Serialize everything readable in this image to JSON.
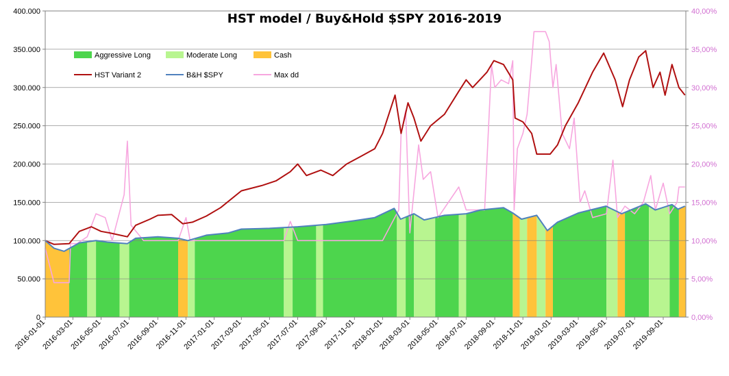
{
  "chart_data": {
    "type": "area",
    "title": "HST model / Buy&Hold $SPY   2016-2019",
    "x_ticks": [
      "2016-01-01",
      "2016-03-01",
      "2016-05-01",
      "2016-07-01",
      "2016-09-01",
      "2016-11-01",
      "2017-01-01",
      "2017-03-01",
      "2017-05-01",
      "2017-07-01",
      "2017-09-01",
      "2017-11-01",
      "2018-01-01",
      "2018-03-01",
      "2018-05-01",
      "2018-07-01",
      "2018-09-01",
      "2018-11-01",
      "2019-01-01",
      "2019-03-01",
      "2019-05-01",
      "2019-07-01",
      "2019-09-01"
    ],
    "x_range": [
      "2016-01-01",
      "2019-10-20"
    ],
    "y_left": {
      "range": [
        0,
        400000
      ],
      "ticks": [
        "0",
        "50.000",
        "100.000",
        "150.000",
        "200.000",
        "250.000",
        "300.000",
        "350.000",
        "400.000"
      ]
    },
    "y_right": {
      "range": [
        0,
        40
      ],
      "ticks": [
        "0,00%",
        "5,00%",
        "10,00%",
        "15,00%",
        "20,00%",
        "25,00%",
        "30,00%",
        "35,00%",
        "40,00%"
      ]
    },
    "grid": true,
    "legend_position": "top-left",
    "legend": [
      {
        "name": "Aggressive Long",
        "kind": "area",
        "color": "#4dd54d"
      },
      {
        "name": "Moderate Long",
        "kind": "area",
        "color": "#b8f590"
      },
      {
        "name": "Cash",
        "kind": "area",
        "color": "#ffc33a"
      },
      {
        "name": "HST Variant 2",
        "kind": "line",
        "color": "#b01010"
      },
      {
        "name": "B&H $SPY",
        "kind": "line",
        "color": "#4f81bd"
      },
      {
        "name": "Max dd",
        "kind": "line",
        "color": "#f7a6df"
      }
    ],
    "regimes": [
      {
        "start": "2016-01-01",
        "end": "2016-02-22",
        "state": "Cash"
      },
      {
        "start": "2016-02-22",
        "end": "2016-04-01",
        "state": "Aggressive Long"
      },
      {
        "start": "2016-04-01",
        "end": "2016-04-20",
        "state": "Moderate Long"
      },
      {
        "start": "2016-04-20",
        "end": "2016-06-10",
        "state": "Aggressive Long"
      },
      {
        "start": "2016-06-10",
        "end": "2016-07-01",
        "state": "Moderate Long"
      },
      {
        "start": "2016-07-01",
        "end": "2016-10-15",
        "state": "Aggressive Long"
      },
      {
        "start": "2016-10-15",
        "end": "2016-11-05",
        "state": "Cash"
      },
      {
        "start": "2016-11-05",
        "end": "2016-11-20",
        "state": "Moderate Long"
      },
      {
        "start": "2016-11-20",
        "end": "2017-06-01",
        "state": "Aggressive Long"
      },
      {
        "start": "2017-06-01",
        "end": "2017-06-20",
        "state": "Moderate Long"
      },
      {
        "start": "2017-06-20",
        "end": "2017-08-10",
        "state": "Aggressive Long"
      },
      {
        "start": "2017-08-10",
        "end": "2017-08-25",
        "state": "Moderate Long"
      },
      {
        "start": "2017-08-25",
        "end": "2018-02-01",
        "state": "Aggressive Long"
      },
      {
        "start": "2018-02-01",
        "end": "2018-02-20",
        "state": "Moderate Long"
      },
      {
        "start": "2018-02-20",
        "end": "2018-03-10",
        "state": "Aggressive Long"
      },
      {
        "start": "2018-03-10",
        "end": "2018-04-25",
        "state": "Moderate Long"
      },
      {
        "start": "2018-04-25",
        "end": "2018-06-15",
        "state": "Aggressive Long"
      },
      {
        "start": "2018-06-15",
        "end": "2018-07-01",
        "state": "Moderate Long"
      },
      {
        "start": "2018-07-01",
        "end": "2018-10-10",
        "state": "Aggressive Long"
      },
      {
        "start": "2018-10-10",
        "end": "2018-10-25",
        "state": "Cash"
      },
      {
        "start": "2018-10-25",
        "end": "2018-11-10",
        "state": "Moderate Long"
      },
      {
        "start": "2018-11-10",
        "end": "2018-12-01",
        "state": "Cash"
      },
      {
        "start": "2018-12-01",
        "end": "2018-12-20",
        "state": "Moderate Long"
      },
      {
        "start": "2018-12-20",
        "end": "2019-01-05",
        "state": "Cash"
      },
      {
        "start": "2019-01-05",
        "end": "2019-05-01",
        "state": "Aggressive Long"
      },
      {
        "start": "2019-05-01",
        "end": "2019-05-25",
        "state": "Moderate Long"
      },
      {
        "start": "2019-05-25",
        "end": "2019-06-10",
        "state": "Cash"
      },
      {
        "start": "2019-06-10",
        "end": "2019-08-01",
        "state": "Aggressive Long"
      },
      {
        "start": "2019-08-01",
        "end": "2019-09-15",
        "state": "Moderate Long"
      },
      {
        "start": "2019-09-15",
        "end": "2019-10-05",
        "state": "Aggressive Long"
      },
      {
        "start": "2019-10-05",
        "end": "2019-10-20",
        "state": "Cash"
      }
    ],
    "series": [
      {
        "name": "HST Variant 2",
        "axis": "left",
        "points": [
          [
            "2016-01-01",
            100000
          ],
          [
            "2016-01-20",
            95000
          ],
          [
            "2016-02-22",
            96000
          ],
          [
            "2016-03-15",
            112000
          ],
          [
            "2016-04-10",
            118000
          ],
          [
            "2016-05-01",
            112000
          ],
          [
            "2016-05-20",
            110000
          ],
          [
            "2016-06-27",
            105000
          ],
          [
            "2016-07-15",
            120000
          ],
          [
            "2016-08-15",
            128000
          ],
          [
            "2016-09-01",
            133000
          ],
          [
            "2016-10-01",
            134000
          ],
          [
            "2016-10-25",
            122000
          ],
          [
            "2016-11-15",
            124000
          ],
          [
            "2016-12-15",
            132000
          ],
          [
            "2017-01-15",
            143000
          ],
          [
            "2017-03-01",
            165000
          ],
          [
            "2017-04-15",
            172000
          ],
          [
            "2017-05-15",
            178000
          ],
          [
            "2017-06-15",
            190000
          ],
          [
            "2017-07-01",
            200000
          ],
          [
            "2017-07-20",
            185000
          ],
          [
            "2017-08-20",
            192000
          ],
          [
            "2017-09-15",
            185000
          ],
          [
            "2017-10-15",
            200000
          ],
          [
            "2017-11-15",
            210000
          ],
          [
            "2017-12-15",
            220000
          ],
          [
            "2018-01-01",
            240000
          ],
          [
            "2018-01-28",
            290000
          ],
          [
            "2018-02-10",
            240000
          ],
          [
            "2018-02-25",
            280000
          ],
          [
            "2018-03-10",
            260000
          ],
          [
            "2018-03-25",
            230000
          ],
          [
            "2018-04-15",
            250000
          ],
          [
            "2018-05-15",
            265000
          ],
          [
            "2018-06-15",
            295000
          ],
          [
            "2018-07-01",
            310000
          ],
          [
            "2018-07-15",
            300000
          ],
          [
            "2018-08-15",
            320000
          ],
          [
            "2018-08-30",
            335000
          ],
          [
            "2018-09-20",
            330000
          ],
          [
            "2018-10-10",
            310000
          ],
          [
            "2018-10-15",
            260000
          ],
          [
            "2018-11-01",
            255000
          ],
          [
            "2018-11-20",
            240000
          ],
          [
            "2018-12-01",
            213000
          ],
          [
            "2018-12-30",
            213000
          ],
          [
            "2019-01-15",
            225000
          ],
          [
            "2019-02-01",
            250000
          ],
          [
            "2019-03-01",
            280000
          ],
          [
            "2019-04-01",
            320000
          ],
          [
            "2019-04-25",
            345000
          ],
          [
            "2019-05-20",
            310000
          ],
          [
            "2019-06-05",
            275000
          ],
          [
            "2019-06-20",
            310000
          ],
          [
            "2019-07-10",
            340000
          ],
          [
            "2019-07-25",
            348000
          ],
          [
            "2019-08-10",
            300000
          ],
          [
            "2019-08-25",
            320000
          ],
          [
            "2019-09-05",
            290000
          ],
          [
            "2019-09-20",
            330000
          ],
          [
            "2019-10-05",
            300000
          ],
          [
            "2019-10-18",
            290000
          ]
        ]
      },
      {
        "name": "B&H $SPY",
        "axis": "left",
        "points": [
          [
            "2016-01-01",
            100000
          ],
          [
            "2016-01-20",
            90000
          ],
          [
            "2016-02-11",
            86000
          ],
          [
            "2016-03-15",
            97000
          ],
          [
            "2016-04-20",
            100000
          ],
          [
            "2016-05-15",
            98000
          ],
          [
            "2016-06-27",
            96000
          ],
          [
            "2016-07-15",
            103000
          ],
          [
            "2016-09-01",
            105000
          ],
          [
            "2016-10-15",
            103000
          ],
          [
            "2016-11-05",
            100000
          ],
          [
            "2016-12-15",
            107000
          ],
          [
            "2017-02-01",
            110000
          ],
          [
            "2017-03-01",
            115000
          ],
          [
            "2017-05-01",
            116000
          ],
          [
            "2017-07-01",
            118000
          ],
          [
            "2017-09-01",
            121000
          ],
          [
            "2017-11-01",
            126000
          ],
          [
            "2017-12-15",
            130000
          ],
          [
            "2018-01-26",
            142000
          ],
          [
            "2018-02-09",
            128000
          ],
          [
            "2018-03-10",
            135000
          ],
          [
            "2018-04-01",
            127000
          ],
          [
            "2018-05-15",
            133000
          ],
          [
            "2018-07-01",
            135000
          ],
          [
            "2018-08-01",
            140000
          ],
          [
            "2018-09-20",
            143000
          ],
          [
            "2018-10-10",
            136000
          ],
          [
            "2018-10-29",
            128000
          ],
          [
            "2018-12-01",
            133000
          ],
          [
            "2018-12-24",
            113000
          ],
          [
            "2019-01-15",
            124000
          ],
          [
            "2019-03-01",
            136000
          ],
          [
            "2019-04-30",
            145000
          ],
          [
            "2019-06-03",
            135000
          ],
          [
            "2019-07-25",
            148000
          ],
          [
            "2019-08-15",
            140000
          ],
          [
            "2019-09-20",
            147000
          ],
          [
            "2019-10-03",
            141000
          ],
          [
            "2019-10-18",
            145000
          ]
        ]
      },
      {
        "name": "Max dd",
        "axis": "right",
        "points": [
          [
            "2016-01-01",
            9.0
          ],
          [
            "2016-01-20",
            4.5
          ],
          [
            "2016-02-22",
            4.5
          ],
          [
            "2016-02-25",
            9.6
          ],
          [
            "2016-03-10",
            9.6
          ],
          [
            "2016-04-01",
            10.5
          ],
          [
            "2016-04-20",
            13.5
          ],
          [
            "2016-05-10",
            13.0
          ],
          [
            "2016-05-25",
            10.0
          ],
          [
            "2016-06-20",
            16.0
          ],
          [
            "2016-06-27",
            23.0
          ],
          [
            "2016-07-05",
            12.0
          ],
          [
            "2016-08-01",
            10.0
          ],
          [
            "2016-10-15",
            10.0
          ],
          [
            "2016-11-01",
            13.0
          ],
          [
            "2016-11-10",
            10.0
          ],
          [
            "2017-06-01",
            10.0
          ],
          [
            "2017-06-15",
            12.5
          ],
          [
            "2017-07-01",
            10.0
          ],
          [
            "2018-01-01",
            10.0
          ],
          [
            "2018-02-05",
            14.0
          ],
          [
            "2018-02-10",
            24.0
          ],
          [
            "2018-02-20",
            27.0
          ],
          [
            "2018-03-01",
            11.0
          ],
          [
            "2018-03-20",
            22.5
          ],
          [
            "2018-03-30",
            18.0
          ],
          [
            "2018-04-15",
            19.0
          ],
          [
            "2018-05-01",
            13.0
          ],
          [
            "2018-06-15",
            17.0
          ],
          [
            "2018-07-01",
            14.0
          ],
          [
            "2018-08-10",
            14.0
          ],
          [
            "2018-08-25",
            33.0
          ],
          [
            "2018-09-01",
            30.0
          ],
          [
            "2018-09-15",
            31.0
          ],
          [
            "2018-10-01",
            30.5
          ],
          [
            "2018-10-10",
            33.5
          ],
          [
            "2018-10-13",
            14.0
          ],
          [
            "2018-10-20",
            22.0
          ],
          [
            "2018-11-01",
            24.0
          ],
          [
            "2018-11-10",
            26.5
          ],
          [
            "2018-11-20",
            33.5
          ],
          [
            "2018-11-25",
            37.3
          ],
          [
            "2018-12-20",
            37.3
          ],
          [
            "2018-12-28",
            36.0
          ],
          [
            "2019-01-05",
            30.0
          ],
          [
            "2019-01-12",
            33.0
          ],
          [
            "2019-01-25",
            24.0
          ],
          [
            "2019-02-10",
            22.0
          ],
          [
            "2019-02-20",
            26.0
          ],
          [
            "2019-03-05",
            15.0
          ],
          [
            "2019-03-15",
            16.5
          ],
          [
            "2019-04-01",
            13.0
          ],
          [
            "2019-05-01",
            13.5
          ],
          [
            "2019-05-15",
            20.5
          ],
          [
            "2019-05-25",
            13.0
          ],
          [
            "2019-06-10",
            14.5
          ],
          [
            "2019-07-01",
            13.5
          ],
          [
            "2019-07-20",
            15.0
          ],
          [
            "2019-08-05",
            18.5
          ],
          [
            "2019-08-15",
            14.0
          ],
          [
            "2019-09-01",
            17.5
          ],
          [
            "2019-09-15",
            13.5
          ],
          [
            "2019-10-01",
            15.0
          ],
          [
            "2019-10-05",
            17.0
          ],
          [
            "2019-10-18",
            17.0
          ]
        ]
      }
    ]
  }
}
